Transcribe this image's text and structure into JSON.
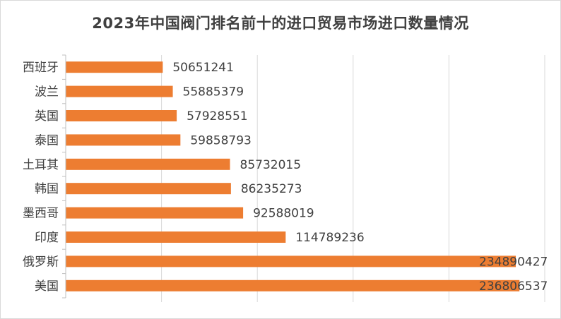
{
  "chart_data": {
    "type": "bar",
    "orientation": "horizontal",
    "title": "2023年中国阀门排名前十的进口贸易市场进口数量情况",
    "xlabel": "",
    "ylabel": "",
    "categories": [
      "西班牙",
      "波兰",
      "英国",
      "泰国",
      "土耳其",
      "韩国",
      "墨西哥",
      "印度",
      "俄罗斯",
      "美国"
    ],
    "values": [
      50651241,
      55885379,
      57928551,
      59858793,
      85732015,
      86235273,
      92588019,
      114789236,
      234890427,
      236806537
    ],
    "xlim": [
      0,
      250000000
    ],
    "grid": "vertical",
    "bar_color": "#ed7d31",
    "show_data_labels": true
  }
}
